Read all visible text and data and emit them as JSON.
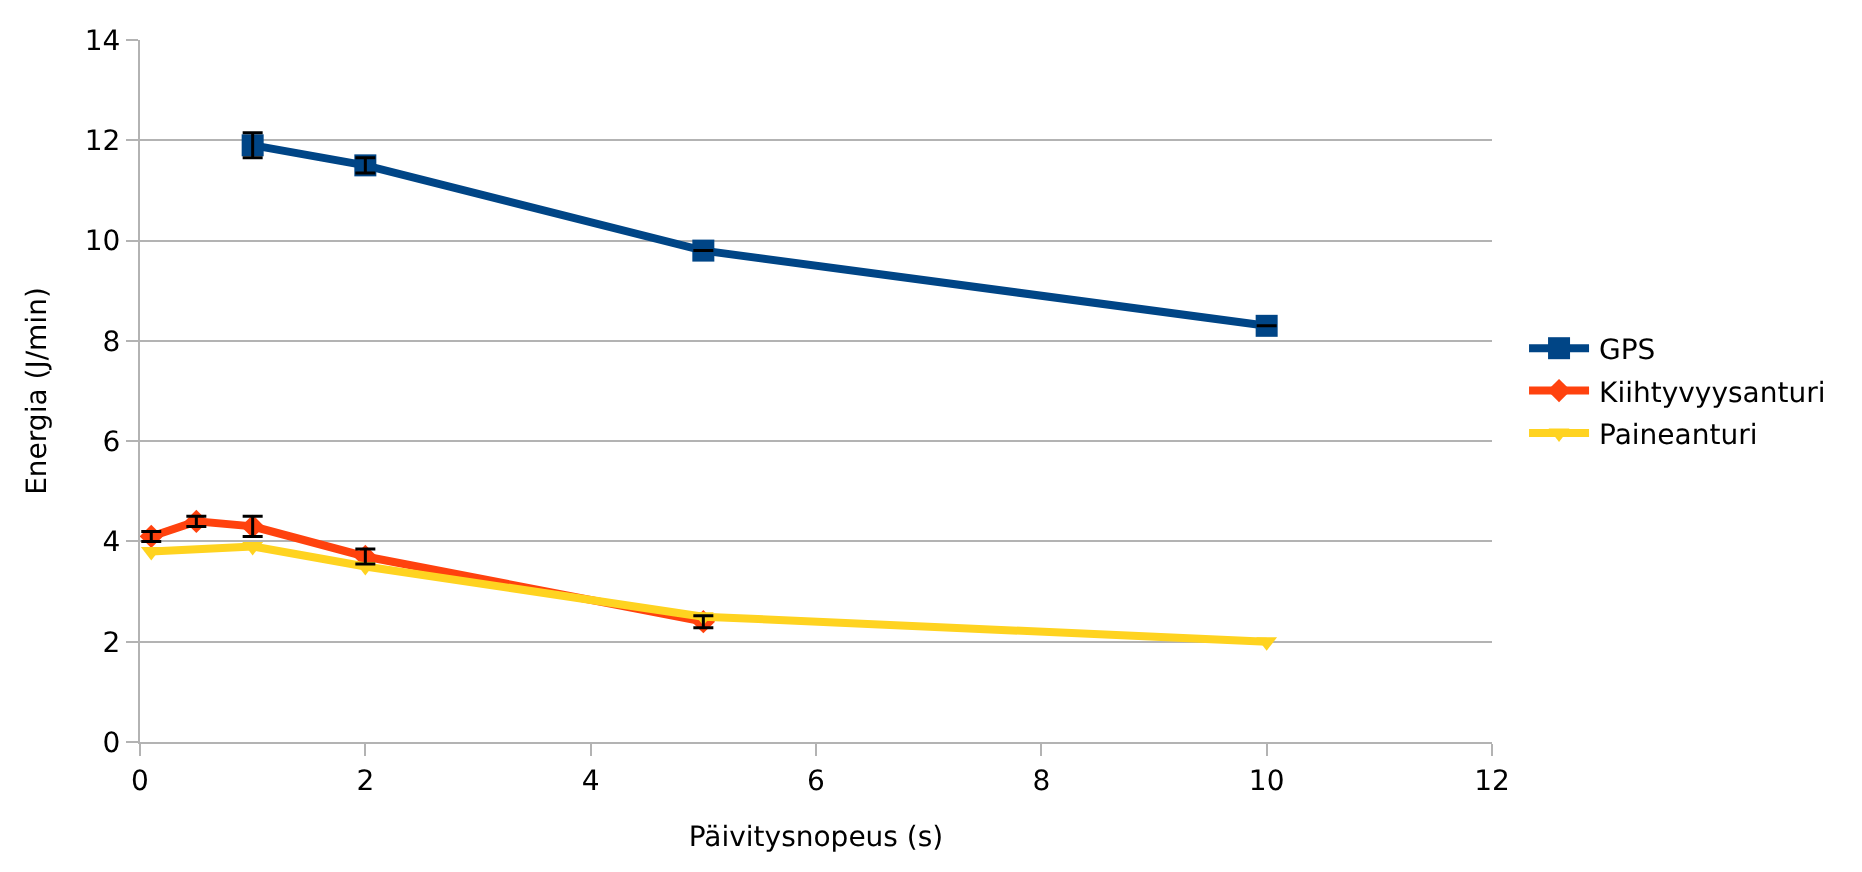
{
  "chart_data": {
    "type": "line",
    "xlabel": "Päivitysnopeus (s)",
    "ylabel": "Energia (J/min)",
    "xlim": [
      0,
      12
    ],
    "xticks": [
      0,
      2,
      4,
      6,
      8,
      10,
      12
    ],
    "ylim": [
      0,
      14
    ],
    "yticks": [
      0,
      2,
      4,
      6,
      8,
      10,
      12,
      14
    ],
    "grid": "y",
    "legend": "right",
    "line_style": "solid",
    "series": [
      {
        "name": "GPS",
        "color": "#004586",
        "marker": "square",
        "x": [
          1,
          2,
          5,
          10
        ],
        "values": [
          11.9,
          11.5,
          9.8,
          8.3
        ],
        "errors": [
          0.25,
          0.15,
          null,
          null
        ]
      },
      {
        "name": "Kiihtyvyysanturi",
        "color": "#ff420e",
        "marker": "diamond",
        "x": [
          0.1,
          0.5,
          1,
          2,
          5
        ],
        "values": [
          4.1,
          4.4,
          4.3,
          3.7,
          2.4
        ],
        "errors": [
          0.1,
          0.1,
          0.2,
          0.15,
          0.12
        ]
      },
      {
        "name": "Paineanturi",
        "color": "#ffd320",
        "marker": "triangle",
        "x": [
          0.1,
          1,
          2,
          5,
          10
        ],
        "values": [
          3.8,
          3.9,
          3.5,
          2.5,
          2.0
        ]
      }
    ]
  }
}
